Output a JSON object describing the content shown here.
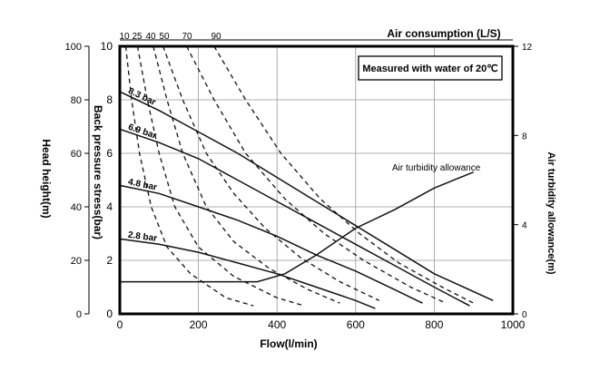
{
  "chart_data": {
    "type": "line",
    "title": "",
    "top_axis_label": "Air consumption (L/S)",
    "top_axis_ticks": [
      "10",
      "25",
      "40",
      "50",
      "70",
      "90"
    ],
    "xlabel": "Flow(l/min)",
    "xlim": [
      0,
      1000
    ],
    "x_ticks": [
      "0",
      "200",
      "400",
      "600",
      "800",
      "1000"
    ],
    "ylabel_left_outer": "Head height(m)",
    "left_outer_ylim": [
      0,
      100
    ],
    "left_outer_ticks": [
      "0",
      "20",
      "40",
      "60",
      "80",
      "100"
    ],
    "ylabel_left_inner": "Back pressure stress(bar)",
    "ylim": [
      0,
      10
    ],
    "y_ticks": [
      "0",
      "2",
      "4",
      "6",
      "8",
      "10"
    ],
    "ylabel_right": "Air turbidity allowance(m)",
    "right_ylim": [
      0,
      12
    ],
    "right_ticks": [
      "0",
      "4",
      "8",
      "12"
    ],
    "annotation_box": "Measured with water of 20℃",
    "annotation_air": "Air turbidity allowance",
    "grid": true,
    "series": [
      {
        "name": "8.3 bar",
        "style": "solid",
        "points": [
          [
            0,
            8.3
          ],
          [
            100,
            7.6
          ],
          [
            200,
            6.8
          ],
          [
            300,
            6.0
          ],
          [
            400,
            5.1
          ],
          [
            500,
            4.2
          ],
          [
            600,
            3.3
          ],
          [
            700,
            2.4
          ],
          [
            800,
            1.5
          ],
          [
            950,
            0.5
          ]
        ]
      },
      {
        "name": "6.9 bar",
        "style": "solid",
        "points": [
          [
            0,
            6.9
          ],
          [
            100,
            6.4
          ],
          [
            200,
            5.8
          ],
          [
            300,
            5.0
          ],
          [
            400,
            4.2
          ],
          [
            500,
            3.4
          ],
          [
            600,
            2.6
          ],
          [
            700,
            1.8
          ],
          [
            800,
            1.0
          ],
          [
            890,
            0.3
          ]
        ]
      },
      {
        "name": "4.8 bar",
        "style": "solid",
        "points": [
          [
            0,
            4.8
          ],
          [
            100,
            4.5
          ],
          [
            200,
            4.0
          ],
          [
            300,
            3.5
          ],
          [
            400,
            2.9
          ],
          [
            500,
            2.2
          ],
          [
            600,
            1.6
          ],
          [
            700,
            0.9
          ],
          [
            770,
            0.4
          ]
        ]
      },
      {
        "name": "2.8 bar",
        "style": "solid",
        "points": [
          [
            0,
            2.8
          ],
          [
            100,
            2.6
          ],
          [
            200,
            2.3
          ],
          [
            300,
            1.9
          ],
          [
            400,
            1.5
          ],
          [
            500,
            1.0
          ],
          [
            600,
            0.5
          ],
          [
            650,
            0.2
          ]
        ]
      },
      {
        "name": "",
        "style": "solid",
        "points": [
          [
            0,
            1.2
          ],
          [
            350,
            1.2
          ],
          [
            420,
            1.5
          ],
          [
            500,
            2.2
          ],
          [
            600,
            3.2
          ],
          [
            700,
            3.9
          ],
          [
            800,
            4.7
          ],
          [
            900,
            5.3
          ]
        ]
      },
      {
        "name": "",
        "style": "dashed",
        "points": [
          [
            15,
            10
          ],
          [
            30,
            8.0
          ],
          [
            50,
            6.0
          ],
          [
            80,
            4.0
          ],
          [
            120,
            2.5
          ],
          [
            180,
            1.5
          ],
          [
            270,
            0.6
          ],
          [
            340,
            0.3
          ]
        ]
      },
      {
        "name": "",
        "style": "dashed",
        "points": [
          [
            45,
            10
          ],
          [
            70,
            8.0
          ],
          [
            100,
            6.0
          ],
          [
            140,
            4.0
          ],
          [
            200,
            2.5
          ],
          [
            290,
            1.4
          ],
          [
            400,
            0.6
          ],
          [
            470,
            0.3
          ]
        ]
      },
      {
        "name": "",
        "style": "dashed",
        "points": [
          [
            85,
            10
          ],
          [
            120,
            8.0
          ],
          [
            160,
            6.0
          ],
          [
            220,
            4.0
          ],
          [
            290,
            2.7
          ],
          [
            380,
            1.7
          ],
          [
            480,
            0.9
          ],
          [
            560,
            0.4
          ]
        ]
      },
      {
        "name": "",
        "style": "dashed",
        "points": [
          [
            110,
            10
          ],
          [
            160,
            8.0
          ],
          [
            220,
            6.0
          ],
          [
            290,
            4.5
          ],
          [
            370,
            3.2
          ],
          [
            460,
            2.1
          ],
          [
            560,
            1.2
          ],
          [
            660,
            0.5
          ]
        ]
      },
      {
        "name": "",
        "style": "dashed",
        "points": [
          [
            170,
            10
          ],
          [
            240,
            8.0
          ],
          [
            320,
            6.0
          ],
          [
            420,
            4.3
          ],
          [
            520,
            3.0
          ],
          [
            620,
            2.0
          ],
          [
            740,
            1.0
          ],
          [
            830,
            0.4
          ]
        ]
      },
      {
        "name": "",
        "style": "dashed",
        "points": [
          [
            240,
            10
          ],
          [
            320,
            8.0
          ],
          [
            410,
            6.0
          ],
          [
            510,
            4.3
          ],
          [
            610,
            3.0
          ],
          [
            710,
            1.9
          ],
          [
            820,
            1.0
          ],
          [
            900,
            0.4
          ]
        ]
      }
    ]
  }
}
